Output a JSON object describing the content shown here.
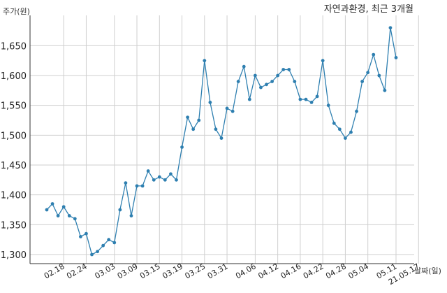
{
  "chart_data": {
    "type": "line",
    "title": "자연과환경, 최근 3개월",
    "ylabel": "주가(원)",
    "xlabel": "날짜(일)",
    "ylim": [
      1280,
      1710
    ],
    "yticks": [
      1300,
      1350,
      1400,
      1450,
      1500,
      1550,
      1600,
      1650
    ],
    "ytick_labels": [
      "1,300",
      "1,350",
      "1,400",
      "1,450",
      "1,500",
      "1,550",
      "1,600",
      "1,650"
    ],
    "xtick_labels": [
      "02.18",
      "02.24",
      "03.03",
      "03.09",
      "03.15",
      "03.19",
      "03.25",
      "03.31",
      "04.06",
      "04.12",
      "04.16",
      "04.22",
      "04.28",
      "05.04",
      "05.11",
      "21.05.17"
    ],
    "xtick_indices": [
      3,
      7,
      12,
      16,
      20,
      24,
      28,
      32,
      37,
      41,
      45,
      49,
      53,
      57,
      62,
      66
    ],
    "grid": true,
    "color": "#2e7fb0",
    "series": [
      {
        "values": [
          1375,
          1385,
          1365,
          1380,
          1365,
          1360,
          1330,
          1335,
          1300,
          1305,
          1315,
          1325,
          1320,
          1375,
          1420,
          1365,
          1415,
          1415,
          1440,
          1425,
          1430,
          1425,
          1435,
          1425,
          1480,
          1530,
          1510,
          1525,
          1625,
          1555,
          1510,
          1495,
          1545,
          1540,
          1590,
          1615,
          1560,
          1600,
          1580,
          1585,
          1590,
          1600,
          1610,
          1610,
          1590,
          1560,
          1560,
          1555,
          1565,
          1625,
          1550,
          1520,
          1510,
          1495,
          1505,
          1540,
          1590,
          1605,
          1635,
          1600,
          1575,
          1680,
          1630
        ]
      }
    ]
  }
}
